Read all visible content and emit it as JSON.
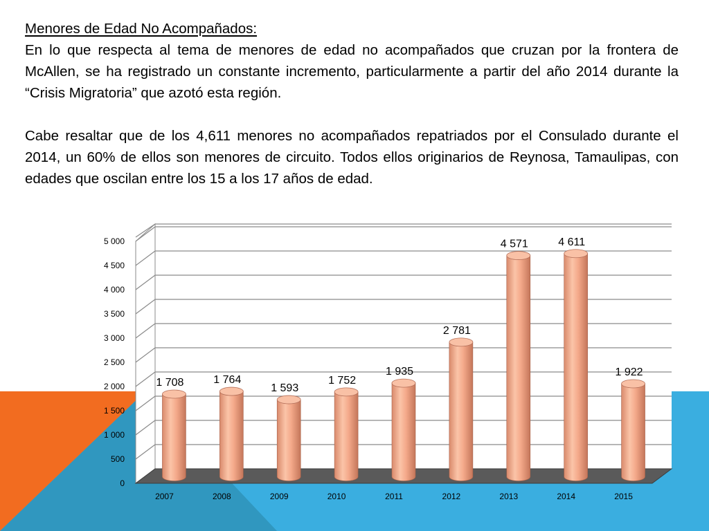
{
  "slide": {
    "heading": "Menores de Edad No Acompañados:",
    "paragraph1": "En lo que respecta al tema de menores de edad no acompañados que cruzan por la frontera de McAllen, se ha registrado un constante incremento, particularmente a partir del año 2014 durante la “Crisis Migratoria” que azotó esta región.",
    "paragraph2": "Cabe resaltar que de los 4,611 menores no acompañados repatriados por el Consulado durante el 2014, un 60% de ellos son menores de circuito.  Todos ellos originarios de Reynosa, Tamaulipas, con edades que oscilan entre los 15 a los 17 años de edad."
  },
  "colors": {
    "orange": "#f26c20",
    "blue": "#3aaee0",
    "bar": "#f4a98a",
    "floor": "#5a5a5a"
  },
  "chart_data": {
    "type": "bar",
    "style": "3d-cylinder",
    "categories": [
      "2007",
      "2008",
      "2009",
      "2010",
      "2011",
      "2012",
      "2013",
      "2014",
      "2015"
    ],
    "values": [
      1708,
      1764,
      1593,
      1752,
      1935,
      2781,
      4571,
      4611,
      1922
    ],
    "data_labels": [
      "1 708",
      "1 764",
      "1 593",
      "1 752",
      "1 935",
      "2 781",
      "4 571",
      "4 611",
      "1 922"
    ],
    "yticks": [
      "0",
      "500",
      "1 000",
      "1 500",
      "2 000",
      "2 500",
      "3 000",
      "3 500",
      "4 000",
      "4 500",
      "5 000"
    ],
    "ylim": [
      0,
      5000
    ],
    "grid": true,
    "legend": "none"
  }
}
